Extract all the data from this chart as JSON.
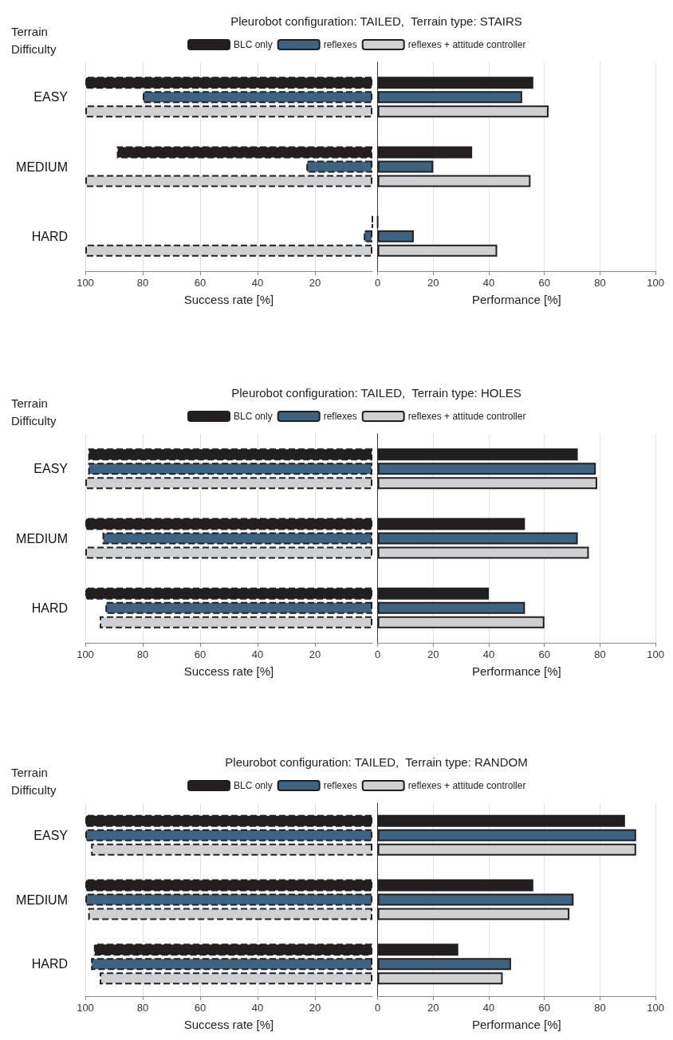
{
  "chart_data": [
    {
      "type": "bar",
      "orientation": "horizontal",
      "title": "Pleurobot configuration: TAILED,  Terrain type: STAIRS",
      "ylabel": "Terrain Difficulty",
      "xlabel": "Success rate [%]",
      "categories": [
        "EASY",
        "MEDIUM",
        "HARD"
      ],
      "xlim": [
        100,
        0
      ],
      "xticks": [
        100,
        80,
        60,
        40,
        20
      ],
      "grid": "x",
      "legend": "top",
      "line_style": "dashed",
      "series": [
        {
          "name": "BLC only",
          "color": "#231f20",
          "values": [
            100,
            89,
            0
          ]
        },
        {
          "name": "reflexes",
          "color": "#3d6382",
          "values": [
            80,
            23,
            3
          ]
        },
        {
          "name": "reflexes + attitude controller",
          "color": "#cfd0d2",
          "values": [
            100,
            100,
            100
          ]
        }
      ]
    },
    {
      "type": "bar",
      "orientation": "horizontal",
      "xlabel": "Performance [%]",
      "categories": [
        "EASY",
        "MEDIUM",
        "HARD"
      ],
      "xlim": [
        0,
        100
      ],
      "xticks": [
        0,
        20,
        40,
        60,
        80,
        100
      ],
      "grid": "x",
      "tick_labels": "x",
      "series": [
        {
          "color": "#231f20",
          "values": [
            56,
            34,
            0
          ]
        },
        {
          "color": "#3d6382",
          "values": [
            52,
            20,
            13
          ]
        },
        {
          "color": "#cfd0d2",
          "values": [
            61.5,
            55,
            43
          ]
        }
      ]
    },
    {
      "type": "bar",
      "orientation": "horizontal",
      "title": "Pleurobot configuration: TAILED,  Terrain type: HOLES",
      "ylabel": "Terrain Difficulty",
      "xlabel": "Success rate [%]",
      "categories": [
        "EASY",
        "MEDIUM",
        "HARD"
      ],
      "xlim": [
        100,
        0
      ],
      "xticks": [
        100,
        80,
        60,
        40,
        20
      ],
      "grid": "x",
      "legend": "top",
      "line_style": "dashed",
      "series": [
        {
          "name": "BLC only",
          "color": "#231f20",
          "values": [
            99,
            100,
            100
          ]
        },
        {
          "name": "reflexes",
          "color": "#3d6382",
          "values": [
            99,
            94,
            93
          ]
        },
        {
          "name": "reflexes + attitude controller",
          "color": "#cfd0d2",
          "values": [
            100,
            100,
            95
          ]
        }
      ]
    },
    {
      "type": "bar",
      "orientation": "horizontal",
      "xlabel": "Performance [%]",
      "categories": [
        "EASY",
        "MEDIUM",
        "HARD"
      ],
      "xlim": [
        0,
        100
      ],
      "xticks": [
        0,
        20,
        40,
        60,
        80,
        100
      ],
      "grid": "x",
      "tick_labels": "x",
      "series": [
        {
          "color": "#231f20",
          "values": [
            72,
            53,
            40
          ]
        },
        {
          "color": "#3d6382",
          "values": [
            78.5,
            72,
            53
          ]
        },
        {
          "color": "#cfd0d2",
          "values": [
            79,
            76,
            60
          ]
        }
      ]
    },
    {
      "type": "bar",
      "orientation": "horizontal",
      "title": "Pleurobot configuration: TAILED,  Terrain type: RANDOM",
      "ylabel": "Terrain Difficulty",
      "xlabel": "Success rate [%]",
      "categories": [
        "EASY",
        "MEDIUM",
        "HARD"
      ],
      "xlim": [
        100,
        0
      ],
      "xticks": [
        100,
        80,
        60,
        40,
        20
      ],
      "grid": "x",
      "legend": "top",
      "line_style": "dashed",
      "series": [
        {
          "name": "BLC only",
          "color": "#231f20",
          "values": [
            100,
            100,
            97
          ]
        },
        {
          "name": "reflexes",
          "color": "#3d6382",
          "values": [
            100,
            100,
            98
          ]
        },
        {
          "name": "reflexes + attitude controller",
          "color": "#cfd0d2",
          "values": [
            98,
            99,
            95
          ]
        }
      ]
    },
    {
      "type": "bar",
      "orientation": "horizontal",
      "xlabel": "Performance [%]",
      "categories": [
        "EASY",
        "MEDIUM",
        "HARD"
      ],
      "xlim": [
        0,
        100
      ],
      "xticks": [
        0,
        20,
        40,
        60,
        80,
        100
      ],
      "grid": "x",
      "tick_labels": "x",
      "series": [
        {
          "color": "#231f20",
          "values": [
            89,
            56,
            29
          ]
        },
        {
          "color": "#3d6382",
          "values": [
            93,
            70.5,
            48
          ]
        },
        {
          "color": "#cfd0d2",
          "values": [
            93,
            69,
            45
          ]
        }
      ]
    }
  ]
}
